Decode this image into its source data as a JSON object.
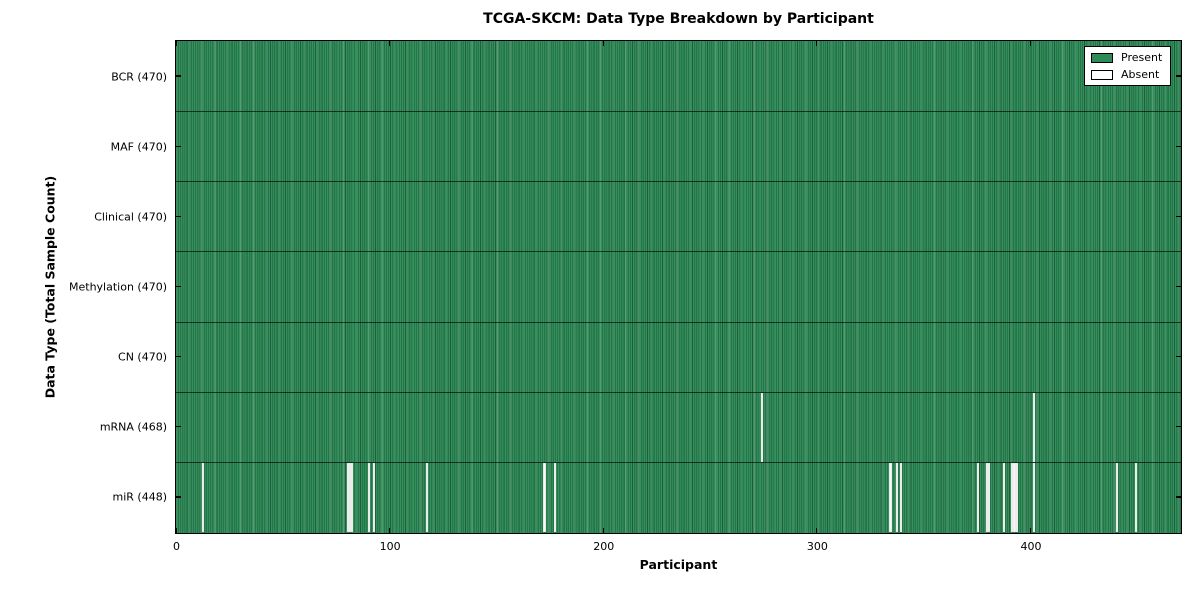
{
  "chart_data": {
    "type": "heatmap",
    "title": "TCGA-SKCM: Data Type Breakdown by Participant",
    "xlabel": "Participant",
    "ylabel": "Data Type (Total Sample Count)",
    "xlim": [
      0,
      470
    ],
    "x_ticks": [
      0,
      100,
      200,
      300,
      400
    ],
    "grid": "row-separators",
    "legend_position": "upper-right",
    "legend": [
      {
        "label": "Present",
        "color": "#2E8B57"
      },
      {
        "label": "Absent",
        "color": "#ffffff"
      }
    ],
    "colors": {
      "present": "#2E8B57",
      "absent": "#f7f7f7",
      "axis": "#000000",
      "background": "#ffffff"
    },
    "rows": [
      {
        "label": "BCR (470)",
        "name": "BCR",
        "total": 470,
        "absent": []
      },
      {
        "label": "MAF (470)",
        "name": "MAF",
        "total": 470,
        "absent": []
      },
      {
        "label": "Clinical (470)",
        "name": "Clinical",
        "total": 470,
        "absent": []
      },
      {
        "label": "Methylation (470)",
        "name": "Methylation",
        "total": 470,
        "absent": []
      },
      {
        "label": "CN (470)",
        "name": "CN",
        "total": 470,
        "absent": []
      },
      {
        "label": "mRNA (468)",
        "name": "mRNA",
        "total": 468,
        "absent": [
          274,
          401
        ]
      },
      {
        "label": "miR (448)",
        "name": "miR",
        "total": 448,
        "absent": [
          12,
          80,
          81,
          82,
          90,
          92,
          117,
          172,
          177,
          334,
          337,
          339,
          375,
          379,
          380,
          387,
          391,
          392,
          393,
          401,
          440,
          449
        ]
      }
    ]
  }
}
